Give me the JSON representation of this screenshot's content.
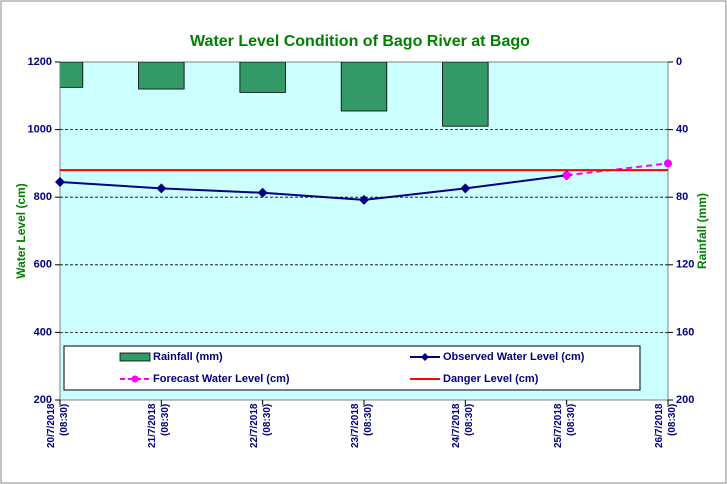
{
  "chart_data": {
    "type": "combo",
    "title": "Water Level Condition of Bago  River at  Bago",
    "categories": [
      "20/7/2018\n(08:30)",
      "21/7/2018\n(08:30)",
      "22/7/2018\n(08:30)",
      "23/7/2018\n(08:30)",
      "24/7/2018\n(08:30)",
      "25/7/2018\n(08:30)",
      "26/7/2018\n(08:30)"
    ],
    "y_label": "Water Level (cm)",
    "y2_label": "Rainfall (mm)",
    "ylim": [
      200,
      1200
    ],
    "yticks": [
      200,
      400,
      600,
      800,
      1000,
      1200
    ],
    "y2lim": [
      200,
      0
    ],
    "y2ticks": [
      0,
      40,
      80,
      120,
      160,
      200
    ],
    "grid": true,
    "background": "#ccffff",
    "series": [
      {
        "name": "Rainfall (mm)",
        "type": "bar",
        "axis": "y2",
        "color": "#339966",
        "values": [
          15,
          16,
          18,
          29,
          38,
          null,
          null
        ]
      },
      {
        "name": "Observed Water Level (cm)",
        "type": "line",
        "color": "#000080",
        "marker": "diamond",
        "values": [
          845,
          826,
          813,
          792,
          826,
          865,
          null
        ]
      },
      {
        "name": "Forecast Water Level (cm)",
        "type": "line",
        "color": "#ff00ff",
        "marker": "circle",
        "dashed": true,
        "values": [
          null,
          null,
          null,
          null,
          null,
          865,
          900
        ]
      },
      {
        "name": "Danger Level (cm)",
        "type": "line",
        "color": "#ff0000",
        "values": [
          880,
          880,
          880,
          880,
          880,
          880,
          880
        ]
      }
    ]
  }
}
